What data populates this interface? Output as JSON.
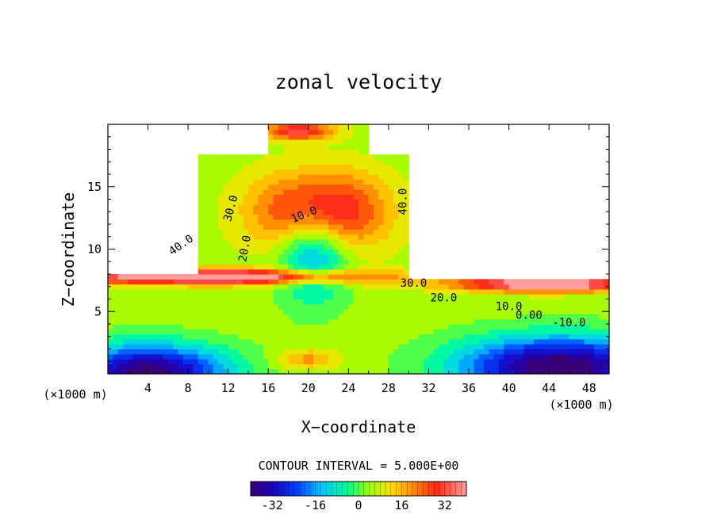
{
  "chart_data": {
    "type": "heatmap",
    "title": "zonal velocity",
    "xlabel": "X−coordinate",
    "ylabel": "Z−coordinate",
    "x_unit_left": "(×1000 m)",
    "x_unit_right": "(×1000 m)",
    "xlim": [
      0,
      50
    ],
    "ylim": [
      0,
      20
    ],
    "x_ticks": [
      4,
      8,
      12,
      16,
      20,
      24,
      28,
      32,
      36,
      40,
      44,
      48
    ],
    "y_ticks": [
      5,
      10,
      15
    ],
    "contour_interval_text": "CONTOUR INTERVAL = 5.000E+00",
    "colorbar": {
      "min": -40,
      "max": 40,
      "ticks": [
        -32,
        -16,
        0,
        16,
        32
      ]
    },
    "contour_labels": [
      {
        "text": "40.0",
        "x": 7.5,
        "y": 10.1,
        "rot": -35
      },
      {
        "text": "30.0",
        "x": 12.6,
        "y": 13.2,
        "rot": -75
      },
      {
        "text": "20.0",
        "x": 14.0,
        "y": 10.0,
        "rot": -80
      },
      {
        "text": "10.0",
        "x": 19.7,
        "y": 12.5,
        "rot": -22
      },
      {
        "text": "40.0",
        "x": 29.8,
        "y": 13.8,
        "rot": -90
      },
      {
        "text": "30.0",
        "x": 30.5,
        "y": 7.0,
        "rot": 0
      },
      {
        "text": "20.0",
        "x": 33.5,
        "y": 5.8,
        "rot": 0
      },
      {
        "text": "10.0",
        "x": 40.0,
        "y": 5.1,
        "rot": 0
      },
      {
        "text": "0.00",
        "x": 42.0,
        "y": 4.4,
        "rot": 0
      },
      {
        "text": "-10.0",
        "x": 46.0,
        "y": 3.8,
        "rot": 0
      }
    ],
    "grid": false
  }
}
